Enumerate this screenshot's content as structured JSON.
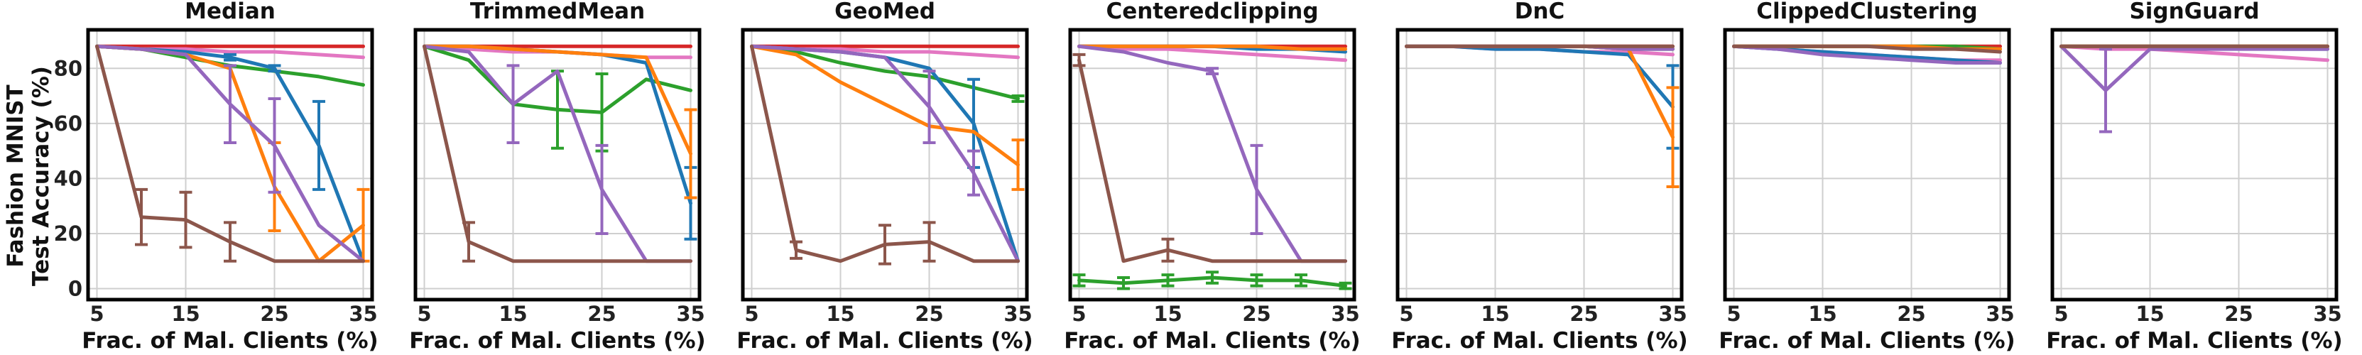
{
  "chart_data": {
    "type": "line",
    "ylabel_lines": [
      "Fashion MNIST",
      "Test Accuracy (%)"
    ],
    "xlabel": "Frac. of Mal. Clients (%)",
    "x_ticks": [
      5,
      15,
      25,
      35
    ],
    "y_ticks": [
      0,
      20,
      40,
      60,
      80
    ],
    "xlim": [
      4,
      36
    ],
    "ylim": [
      -4,
      94
    ],
    "grid": true,
    "series_colors": {
      "blue": "#1f77b4",
      "orange": "#ff7f0e",
      "green": "#2ca02c",
      "red": "#d62728",
      "purple": "#9467bd",
      "brown": "#8c564b",
      "pink": "#e377c2"
    },
    "series_order": [
      "red",
      "pink",
      "green",
      "blue",
      "orange",
      "purple",
      "brown"
    ],
    "x": [
      5,
      10,
      15,
      20,
      25,
      30,
      35
    ],
    "panels": [
      {
        "title": "Median",
        "series": {
          "blue": {
            "values": [
              88,
              87,
              86,
              84,
              80,
              52,
              10
            ],
            "err": [
              0,
              0,
              0,
              1,
              1,
              16,
              0
            ]
          },
          "orange": {
            "values": [
              88,
              87,
              85,
              80,
              37,
              10,
              23
            ],
            "err": [
              0,
              0,
              0,
              0,
              16,
              0,
              13
            ]
          },
          "green": {
            "values": [
              88,
              87,
              84,
              81,
              79,
              77,
              74
            ],
            "err": [
              0,
              0,
              0,
              0,
              0,
              0,
              0
            ]
          },
          "red": {
            "values": [
              88,
              88,
              88,
              88,
              88,
              88,
              88
            ],
            "err": [
              0,
              0,
              0,
              0,
              0,
              0,
              0
            ]
          },
          "purple": {
            "values": [
              88,
              87,
              85,
              67,
              52,
              23,
              10
            ],
            "err": [
              0,
              0,
              0,
              14,
              17,
              0,
              0
            ]
          },
          "brown": {
            "values": [
              88,
              26,
              25,
              17,
              10,
              10,
              10
            ],
            "err": [
              0,
              10,
              10,
              7,
              0,
              0,
              0
            ]
          },
          "pink": {
            "values": [
              88,
              87,
              87,
              86,
              86,
              85,
              84
            ],
            "err": [
              0,
              0,
              0,
              0,
              0,
              0,
              0
            ]
          }
        }
      },
      {
        "title": "TrimmedMean",
        "series": {
          "blue": {
            "values": [
              88,
              88,
              87,
              86,
              85,
              82,
              31
            ],
            "err": [
              0,
              0,
              0,
              0,
              0,
              0,
              13
            ]
          },
          "orange": {
            "values": [
              88,
              88,
              87,
              86,
              85,
              84,
              49
            ],
            "err": [
              0,
              0,
              0,
              0,
              0,
              0,
              16
            ]
          },
          "green": {
            "values": [
              88,
              83,
              67,
              65,
              64,
              76,
              72
            ],
            "err": [
              0,
              0,
              0,
              14,
              14,
              0,
              0
            ]
          },
          "red": {
            "values": [
              88,
              88,
              88,
              88,
              88,
              88,
              88
            ],
            "err": [
              0,
              0,
              0,
              0,
              0,
              0,
              0
            ]
          },
          "purple": {
            "values": [
              88,
              86,
              67,
              79,
              36,
              10,
              10
            ],
            "err": [
              0,
              0,
              14,
              0,
              16,
              0,
              0
            ]
          },
          "brown": {
            "values": [
              88,
              17,
              10,
              10,
              10,
              10,
              10
            ],
            "err": [
              0,
              7,
              0,
              0,
              0,
              0,
              0
            ]
          },
          "pink": {
            "values": [
              88,
              87,
              86,
              86,
              85,
              84,
              84
            ],
            "err": [
              0,
              0,
              0,
              0,
              0,
              0,
              0
            ]
          }
        }
      },
      {
        "title": "GeoMed",
        "series": {
          "blue": {
            "values": [
              88,
              87,
              86,
              84,
              80,
              60,
              10
            ],
            "err": [
              0,
              0,
              0,
              0,
              0,
              16,
              0
            ]
          },
          "orange": {
            "values": [
              88,
              85,
              75,
              67,
              59,
              57,
              45
            ],
            "err": [
              0,
              0,
              0,
              0,
              0,
              0,
              9
            ]
          },
          "green": {
            "values": [
              88,
              86,
              82,
              79,
              77,
              73,
              69
            ],
            "err": [
              0,
              0,
              0,
              0,
              0,
              0,
              1
            ]
          },
          "red": {
            "values": [
              88,
              88,
              88,
              88,
              88,
              88,
              88
            ],
            "err": [
              0,
              0,
              0,
              0,
              0,
              0,
              0
            ]
          },
          "purple": {
            "values": [
              88,
              87,
              86,
              84,
              66,
              42,
              10
            ],
            "err": [
              0,
              0,
              0,
              0,
              13,
              8,
              0
            ]
          },
          "brown": {
            "values": [
              88,
              14,
              10,
              16,
              17,
              10,
              10
            ],
            "err": [
              0,
              3,
              0,
              7,
              7,
              0,
              0
            ]
          },
          "pink": {
            "values": [
              88,
              87,
              87,
              86,
              86,
              85,
              84
            ],
            "err": [
              0,
              0,
              0,
              0,
              0,
              0,
              0
            ]
          }
        }
      },
      {
        "title": "Centeredclipping",
        "series": {
          "blue": {
            "values": [
              88,
              88,
              88,
              88,
              87,
              87,
              86
            ],
            "err": [
              0,
              0,
              0,
              0,
              0,
              0,
              0
            ]
          },
          "orange": {
            "values": [
              88,
              88,
              88,
              88,
              88,
              87,
              87
            ],
            "err": [
              0,
              0,
              0,
              0,
              0,
              0,
              0
            ]
          },
          "green": {
            "values": [
              3,
              2,
              3,
              4,
              3,
              3,
              1
            ],
            "err": [
              2,
              2,
              2,
              2,
              2,
              2,
              1
            ]
          },
          "red": {
            "values": [
              88,
              88,
              88,
              88,
              88,
              88,
              88
            ],
            "err": [
              0,
              0,
              0,
              0,
              0,
              0,
              0
            ]
          },
          "purple": {
            "values": [
              88,
              86,
              82,
              79,
              36,
              10,
              10
            ],
            "err": [
              0,
              0,
              0,
              1,
              16,
              0,
              0
            ]
          },
          "brown": {
            "values": [
              83,
              10,
              14,
              10,
              10,
              10,
              10
            ],
            "err": [
              2,
              0,
              4,
              0,
              0,
              0,
              0
            ]
          },
          "pink": {
            "values": [
              88,
              87,
              87,
              86,
              85,
              84,
              83
            ],
            "err": [
              0,
              0,
              0,
              0,
              0,
              0,
              0
            ]
          }
        }
      },
      {
        "title": "DnC",
        "series": {
          "blue": {
            "values": [
              88,
              88,
              87,
              87,
              86,
              85,
              66
            ],
            "err": [
              0,
              0,
              0,
              0,
              0,
              0,
              15
            ]
          },
          "orange": {
            "values": [
              88,
              88,
              88,
              88,
              88,
              87,
              55
            ],
            "err": [
              0,
              0,
              0,
              0,
              0,
              0,
              18
            ]
          },
          "green": {
            "values": [
              88,
              88,
              88,
              88,
              88,
              87,
              87
            ],
            "err": [
              0,
              0,
              0,
              0,
              0,
              0,
              0
            ]
          },
          "red": {
            "values": [
              88,
              88,
              88,
              88,
              88,
              88,
              88
            ],
            "err": [
              0,
              0,
              0,
              0,
              0,
              0,
              0
            ]
          },
          "purple": {
            "values": [
              88,
              88,
              88,
              88,
              88,
              87,
              87
            ],
            "err": [
              0,
              0,
              0,
              0,
              0,
              0,
              0
            ]
          },
          "brown": {
            "values": [
              88,
              88,
              88,
              88,
              88,
              88,
              88
            ],
            "err": [
              0,
              0,
              0,
              0,
              0,
              0,
              0
            ]
          },
          "pink": {
            "values": [
              88,
              88,
              87,
              87,
              86,
              86,
              85
            ],
            "err": [
              0,
              0,
              0,
              0,
              0,
              0,
              0
            ]
          }
        }
      },
      {
        "title": "ClippedClustering",
        "series": {
          "blue": {
            "values": [
              88,
              87,
              86,
              85,
              84,
              83,
              82
            ],
            "err": [
              0,
              0,
              0,
              0,
              0,
              0,
              0
            ]
          },
          "orange": {
            "values": [
              88,
              88,
              88,
              88,
              88,
              87,
              87
            ],
            "err": [
              0,
              0,
              0,
              0,
              0,
              0,
              0
            ]
          },
          "green": {
            "values": [
              88,
              88,
              88,
              88,
              88,
              88,
              87
            ],
            "err": [
              0,
              0,
              0,
              0,
              0,
              0,
              0
            ]
          },
          "red": {
            "values": [
              88,
              88,
              88,
              88,
              88,
              88,
              88
            ],
            "err": [
              0,
              0,
              0,
              0,
              0,
              0,
              0
            ]
          },
          "purple": {
            "values": [
              88,
              87,
              85,
              84,
              83,
              82,
              82
            ],
            "err": [
              0,
              0,
              0,
              0,
              0,
              0,
              0
            ]
          },
          "brown": {
            "values": [
              88,
              88,
              88,
              88,
              87,
              87,
              86
            ],
            "err": [
              0,
              0,
              0,
              0,
              0,
              0,
              0
            ]
          },
          "pink": {
            "values": [
              88,
              87,
              86,
              85,
              84,
              83,
              83
            ],
            "err": [
              0,
              0,
              0,
              0,
              0,
              0,
              0
            ]
          }
        }
      },
      {
        "title": "SignGuard",
        "series": {
          "blue": {
            "values": [
              88,
              88,
              88,
              88,
              88,
              87,
              87
            ],
            "err": [
              0,
              0,
              0,
              0,
              0,
              0,
              0
            ]
          },
          "orange": {
            "values": [
              88,
              88,
              88,
              88,
              88,
              88,
              88
            ],
            "err": [
              0,
              0,
              0,
              0,
              0,
              0,
              0
            ]
          },
          "green": {
            "values": [
              88,
              88,
              88,
              88,
              88,
              88,
              88
            ],
            "err": [
              0,
              0,
              0,
              0,
              0,
              0,
              0
            ]
          },
          "red": {
            "values": [
              88,
              88,
              88,
              88,
              88,
              88,
              88
            ],
            "err": [
              0,
              0,
              0,
              0,
              0,
              0,
              0
            ]
          },
          "purple": {
            "values": [
              88,
              72,
              87,
              87,
              87,
              87,
              87
            ],
            "err": [
              0,
              15,
              0,
              0,
              0,
              0,
              0
            ]
          },
          "brown": {
            "values": [
              88,
              88,
              88,
              88,
              88,
              88,
              88
            ],
            "err": [
              0,
              0,
              0,
              0,
              0,
              0,
              0
            ]
          },
          "pink": {
            "values": [
              88,
              87,
              87,
              86,
              85,
              84,
              83
            ],
            "err": [
              0,
              0,
              0,
              0,
              0,
              0,
              0
            ]
          }
        }
      }
    ]
  }
}
